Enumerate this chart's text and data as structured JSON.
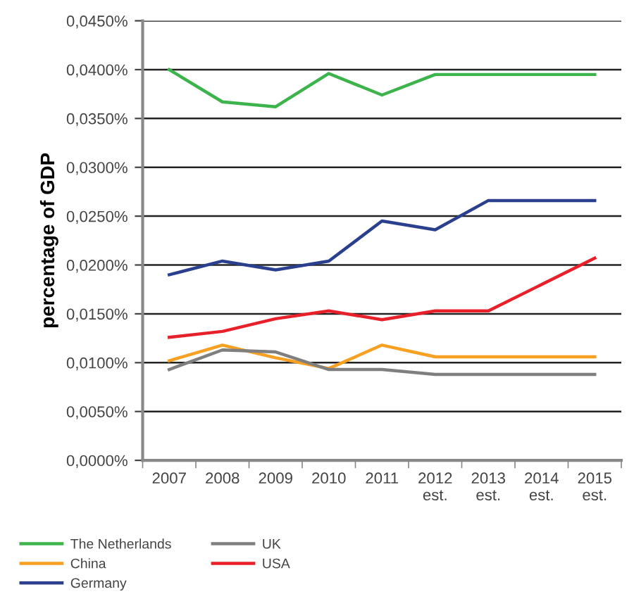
{
  "chart_data": {
    "type": "line",
    "ylabel": "percentage of GDP",
    "categories": [
      "2007",
      "2008",
      "2009",
      "2010",
      "2011",
      "2012\nest.",
      "2013\nest.",
      "2014\nest.",
      "2015\nest."
    ],
    "series": [
      {
        "name": "The Netherlands",
        "color": "#3cb44b",
        "values": [
          0.04,
          0.0367,
          0.0362,
          0.0396,
          0.0374,
          0.0395,
          0.0395,
          0.0395,
          0.0395
        ]
      },
      {
        "name": "China",
        "color": "#f7a021",
        "values": [
          0.0102,
          0.0118,
          0.0105,
          0.0094,
          0.0118,
          0.0106,
          0.0106,
          0.0106,
          0.0106
        ]
      },
      {
        "name": "Germany",
        "color": "#2b3f8f",
        "values": [
          0.019,
          0.0204,
          0.0195,
          0.0204,
          0.0245,
          0.0236,
          0.0266,
          0.0266,
          0.0266
        ]
      },
      {
        "name": "UK",
        "color": "#7f7f7f",
        "values": [
          0.0093,
          0.0113,
          0.0111,
          0.0093,
          0.0093,
          0.0088,
          0.0088,
          0.0088,
          0.0088
        ]
      },
      {
        "name": "USA",
        "color": "#e8202a",
        "values": [
          0.0126,
          0.0132,
          0.0145,
          0.0153,
          0.0144,
          0.0153,
          0.0153,
          0.018,
          0.0207
        ]
      }
    ],
    "ylim": [
      0,
      0.045
    ],
    "yticks": [
      {
        "value": 0,
        "label": "0,0000%"
      },
      {
        "value": 0.005,
        "label": "0,0050%"
      },
      {
        "value": 0.01,
        "label": "0,0100%"
      },
      {
        "value": 0.015,
        "label": "0,0150%"
      },
      {
        "value": 0.02,
        "label": "0,0200%"
      },
      {
        "value": 0.025,
        "label": "0,0250%"
      },
      {
        "value": 0.03,
        "label": "0,0300%"
      },
      {
        "value": 0.035,
        "label": "0,0350%"
      },
      {
        "value": 0.04,
        "label": "0,0400%"
      },
      {
        "value": 0.045,
        "label": "0,0450%"
      }
    ],
    "grid": "y",
    "legend": "bottom",
    "marker": "none",
    "line_style": "solid"
  }
}
